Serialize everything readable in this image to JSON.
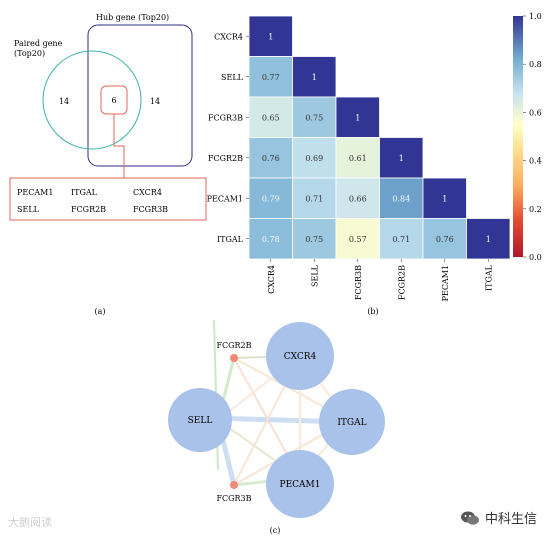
{
  "venn": {
    "left_title_line1": "Paired gene",
    "left_title_line2": "(Top20)",
    "right_title": "Hub gene (Top20)",
    "left_only": "14",
    "intersection": "6",
    "right_only": "14",
    "genes": [
      "PECAM1",
      "ITGAL",
      "CXCR4",
      "SELL",
      "FCGR2B",
      "FCGR3B"
    ],
    "colors": {
      "left_circle": "#3bb3a8",
      "right_box": "#2b2f86",
      "callout": "#e2695a"
    },
    "label": "(a)"
  },
  "heatmap": {
    "label": "(b)",
    "colorbar_ticks": [
      "1.0",
      "0.8",
      "0.6",
      "0.4",
      "0.2",
      "0.0"
    ]
  },
  "chart_data": {
    "type": "heatmap",
    "rows": [
      "CXCR4",
      "SELL",
      "FCGR3B",
      "FCGR2B",
      "PECAM1",
      "ITGAL"
    ],
    "cols": [
      "CXCR4",
      "SELL",
      "FCGR3B",
      "FCGR2B",
      "PECAM1",
      "ITGAL"
    ],
    "values": [
      [
        1
      ],
      [
        0.77,
        1
      ],
      [
        0.65,
        0.75,
        1
      ],
      [
        0.76,
        0.69,
        0.61,
        1
      ],
      [
        0.79,
        0.71,
        0.66,
        0.84,
        1
      ],
      [
        0.78,
        0.75,
        0.57,
        0.71,
        0.76,
        1
      ]
    ],
    "value_labels": [
      [
        "1"
      ],
      [
        "0.77",
        "1"
      ],
      [
        "0.65",
        "0.75",
        "1"
      ],
      [
        "0.76",
        "0.69",
        "0.61",
        "1"
      ],
      [
        "0.79",
        "0.71",
        "0.66",
        "0.84",
        "1"
      ],
      [
        "0.78",
        "0.75",
        "0.57",
        "0.71",
        "0.76",
        "1"
      ]
    ],
    "colorscale": "RdYlBu",
    "range": [
      0,
      1
    ]
  },
  "network": {
    "label": "(c)",
    "nodes": [
      "FCGR2B",
      "CXCR4",
      "SELL",
      "ITGAL",
      "PECAM1",
      "FCGR3B"
    ],
    "node_color": "#a9c2e9",
    "small_node_color": "#f08a77"
  },
  "watermarks": {
    "left": "大鹅阅读",
    "right": "中科生信"
  }
}
